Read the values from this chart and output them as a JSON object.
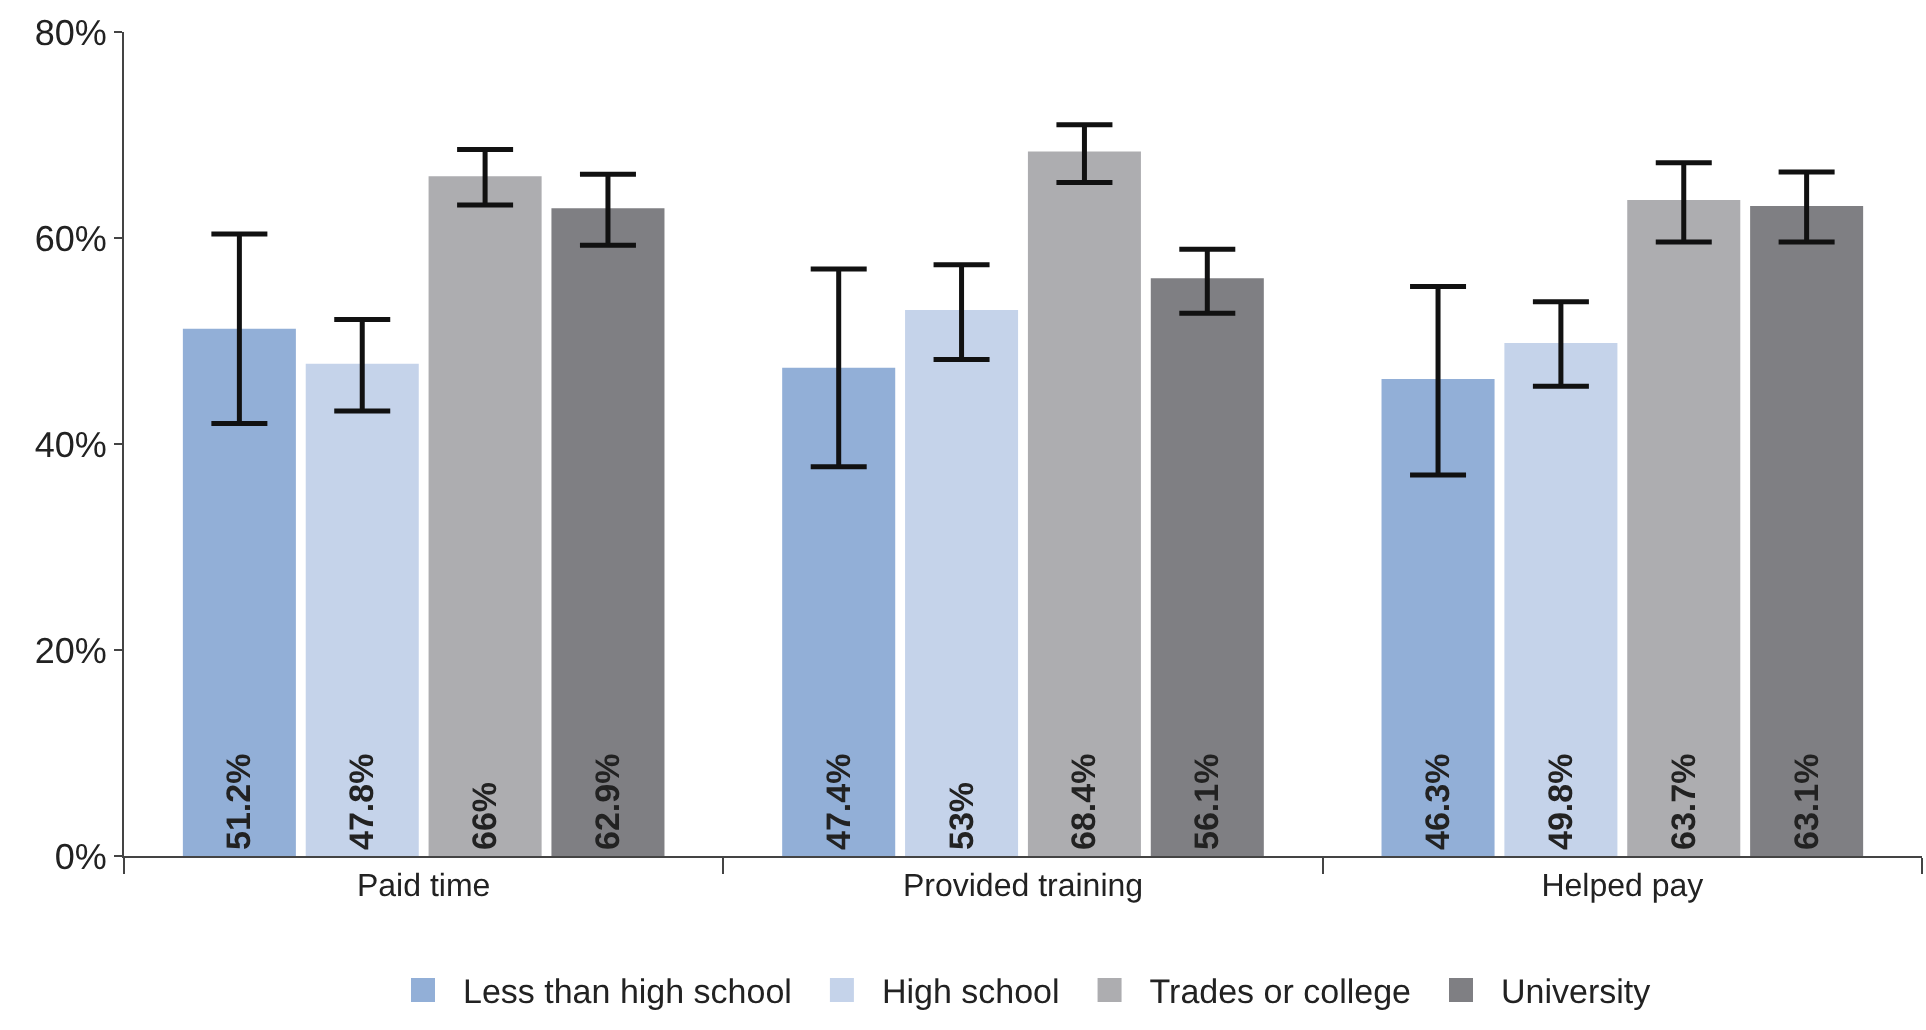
{
  "chart_data": {
    "type": "bar",
    "categories": [
      "Paid time",
      "Provided training",
      "Helped pay"
    ],
    "series": [
      {
        "name": "Less than high school",
        "color": "#92afd7",
        "values": [
          51.2,
          47.4,
          46.3
        ],
        "value_labels": [
          "51.2%",
          "47.4%",
          "46.3%"
        ],
        "errors": [
          [
            42,
            60.4
          ],
          [
            37.8,
            57
          ],
          [
            37,
            55.3
          ]
        ]
      },
      {
        "name": "High school",
        "color": "#c5d3ea",
        "values": [
          47.8,
          53,
          49.8
        ],
        "value_labels": [
          "47.8%",
          "53%",
          "49.8%"
        ],
        "errors": [
          [
            43.2,
            52.1
          ],
          [
            48.2,
            57.4
          ],
          [
            45.6,
            53.8
          ]
        ]
      },
      {
        "name": "Trades or college",
        "color": "#adadb0",
        "values": [
          66,
          68.4,
          63.7
        ],
        "value_labels": [
          "66%",
          "68.4%",
          "63.7%"
        ],
        "errors": [
          [
            63.2,
            68.6
          ],
          [
            65.4,
            71
          ],
          [
            59.6,
            67.3
          ]
        ]
      },
      {
        "name": "University",
        "color": "#7f7f83",
        "values": [
          62.9,
          56.1,
          63.1
        ],
        "value_labels": [
          "62.9%",
          "56.1%",
          "63.1%"
        ],
        "errors": [
          [
            59.3,
            66.2
          ],
          [
            52.7,
            58.9
          ],
          [
            59.6,
            66.4
          ]
        ]
      }
    ],
    "ylim": [
      0,
      80
    ],
    "yticks": [
      {
        "value": 0,
        "label": "0%"
      },
      {
        "value": 20,
        "label": "20%"
      },
      {
        "value": 40,
        "label": "40%"
      },
      {
        "value": 60,
        "label": "60%"
      },
      {
        "value": 80,
        "label": "80%"
      }
    ],
    "grid": false,
    "legend": "bottom"
  }
}
